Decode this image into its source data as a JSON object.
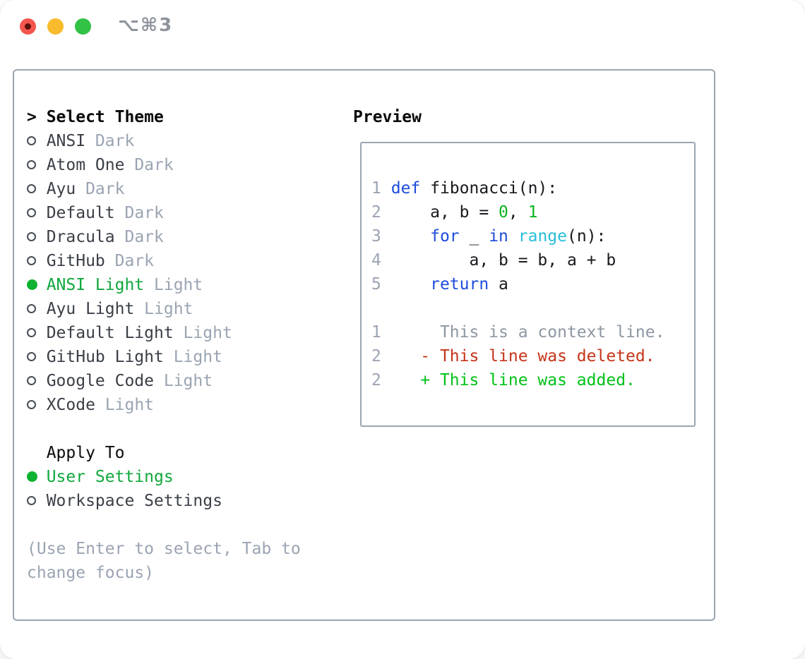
{
  "window": {
    "title": "⌥⌘3",
    "traffic_lights": [
      "close",
      "minimize",
      "zoom"
    ]
  },
  "colors": {
    "border": "#9aa5b1",
    "muted": "#9aa4b2",
    "context": "#8d97a2",
    "item": "#3a3f47",
    "black": "#0a0a0a",
    "selection": "#10a83c",
    "circle_fill": "#0db231",
    "circle_ring": "#474d56",
    "fg": "#17191d",
    "blue": "#1e4bdb",
    "cyan": "#27bed8",
    "green": "#0cb51f",
    "added": "#00c117",
    "red": "#c53418",
    "title_gray": "#8e949c",
    "light_red": "#f4564e",
    "light_red_dot": "#5c100c",
    "light_yellow": "#f8bb2d",
    "light_green": "#32c245"
  },
  "theme_selector": {
    "header": {
      "prompt": ">",
      "label": "Select Theme"
    },
    "items": [
      {
        "name": "ANSI",
        "variant": "Dark",
        "selected": false
      },
      {
        "name": "Atom One",
        "variant": "Dark",
        "selected": false
      },
      {
        "name": "Ayu",
        "variant": "Dark",
        "selected": false
      },
      {
        "name": "Default",
        "variant": "Dark",
        "selected": false
      },
      {
        "name": "Dracula",
        "variant": "Dark",
        "selected": false
      },
      {
        "name": "GitHub",
        "variant": "Dark",
        "selected": false
      },
      {
        "name": "ANSI Light",
        "variant": "Light",
        "selected": true
      },
      {
        "name": "Ayu Light",
        "variant": "Light",
        "selected": false
      },
      {
        "name": "Default Light",
        "variant": "Light",
        "selected": false
      },
      {
        "name": "GitHub Light",
        "variant": "Light",
        "selected": false
      },
      {
        "name": "Google Code",
        "variant": "Light",
        "selected": false
      },
      {
        "name": "XCode",
        "variant": "Light",
        "selected": false
      }
    ]
  },
  "apply_to": {
    "header": "Apply To",
    "options": [
      {
        "label": "User Settings",
        "selected": true
      },
      {
        "label": "Workspace Settings",
        "selected": false
      }
    ]
  },
  "hint": "(Use Enter to select, Tab to change focus)",
  "preview": {
    "header": "Preview",
    "lines": [
      {
        "kind": "code",
        "num": "1",
        "segments": [
          [
            "fg",
            " "
          ],
          [
            "blue",
            "def"
          ],
          [
            "fg",
            " fibonacci(n):"
          ]
        ]
      },
      {
        "kind": "code",
        "num": "2",
        "segments": [
          [
            "fg",
            "     a, b = "
          ],
          [
            "green",
            "0"
          ],
          [
            "fg",
            ", "
          ],
          [
            "green",
            "1"
          ]
        ]
      },
      {
        "kind": "code",
        "num": "3",
        "segments": [
          [
            "fg",
            "     "
          ],
          [
            "blue",
            "for"
          ],
          [
            "fg",
            " _ "
          ],
          [
            "blue",
            "in"
          ],
          [
            "fg",
            " "
          ],
          [
            "cyan",
            "range"
          ],
          [
            "fg",
            "(n):"
          ]
        ]
      },
      {
        "kind": "code",
        "num": "4",
        "segments": [
          [
            "fg",
            "         a, b = b, a + b"
          ]
        ]
      },
      {
        "kind": "code",
        "num": "5",
        "segments": [
          [
            "fg",
            "     "
          ],
          [
            "blue",
            "return"
          ],
          [
            "fg",
            " a"
          ]
        ]
      },
      {
        "kind": "blank",
        "num": "",
        "segments": []
      },
      {
        "kind": "diff-context",
        "num": "1",
        "segments": [
          [
            "context",
            "      This is a context line."
          ]
        ]
      },
      {
        "kind": "diff-deleted",
        "num": "2",
        "segments": [
          [
            "red",
            "    - This line was deleted."
          ]
        ]
      },
      {
        "kind": "diff-added",
        "num": "2",
        "segments": [
          [
            "added",
            "    + This line was added."
          ]
        ]
      }
    ]
  }
}
